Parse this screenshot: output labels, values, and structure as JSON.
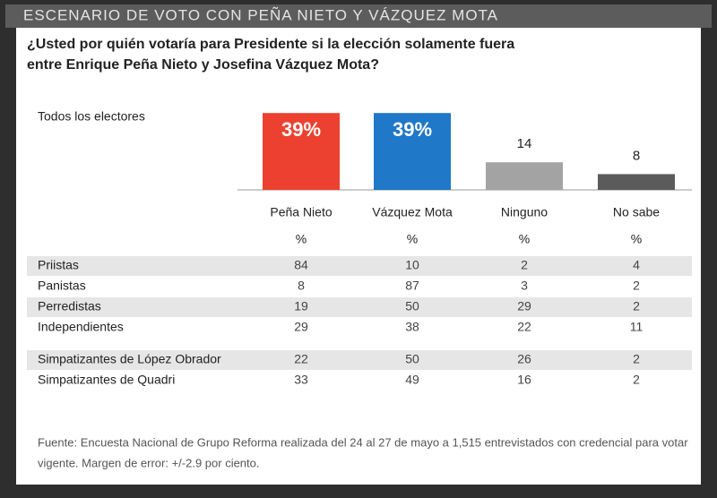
{
  "header": {
    "title": "ESCENARIO DE VOTO CON PEÑA NIETO Y VÁZQUEZ MOTA"
  },
  "question": [
    "¿Usted por quién votaría para Presidente si la elección solamente fuera",
    "entre Enrique Peña Nieto y Josefina Vázquez Mota?"
  ],
  "chart_data": {
    "type": "bar",
    "series_label": "Todos los electores",
    "categories": [
      "Peña Nieto",
      "Vázquez Mota",
      "Ninguno",
      "No sabe"
    ],
    "values": [
      39,
      39,
      14,
      8
    ],
    "value_labels": [
      "39%",
      "39%",
      "14",
      "8"
    ],
    "colors": [
      "#ec4130",
      "#1f78c8",
      "#a3a3a3",
      "#5b5b5b"
    ]
  },
  "table": {
    "units": [
      "%",
      "%",
      "%",
      "%"
    ],
    "groups": [
      [
        [
          "Priistas",
          84,
          10,
          2,
          4
        ],
        [
          "Panistas",
          8,
          87,
          3,
          2
        ],
        [
          "Perredistas",
          19,
          50,
          29,
          2
        ],
        [
          "Independientes",
          29,
          38,
          22,
          11
        ]
      ],
      [
        [
          "Simpatizantes de López Obrador",
          22,
          50,
          26,
          2
        ],
        [
          "Simpatizantes de Quadri",
          33,
          49,
          16,
          2
        ]
      ]
    ]
  },
  "source": [
    "Fuente: Encuesta Nacional de Grupo Reforma realizada del 24 al 27 de mayo a 1,515 entrevistados con credencial para votar",
    "vigente. Margen de error: +/-2.9 por ciento."
  ]
}
